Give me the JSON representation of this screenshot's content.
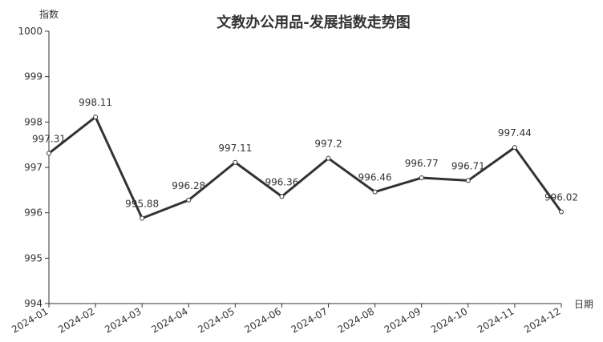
{
  "chart_data": {
    "type": "line",
    "title": "文教办公用品-发展指数走势图",
    "y_label": "指数",
    "x_label": "日期",
    "categories": [
      "2024-01",
      "2024-02",
      "2024-03",
      "2024-04",
      "2024-05",
      "2024-06",
      "2024-07",
      "2024-08",
      "2024-09",
      "2024-10",
      "2024-11",
      "2024-12"
    ],
    "values": [
      997.31,
      998.11,
      995.88,
      996.28,
      997.11,
      996.36,
      997.2,
      996.46,
      996.77,
      996.71,
      997.44,
      996.02
    ],
    "color": "#333333",
    "ylim": [
      994,
      1000
    ],
    "yticks": [
      994,
      995,
      996,
      997,
      998,
      999,
      1000
    ],
    "grid": false
  }
}
